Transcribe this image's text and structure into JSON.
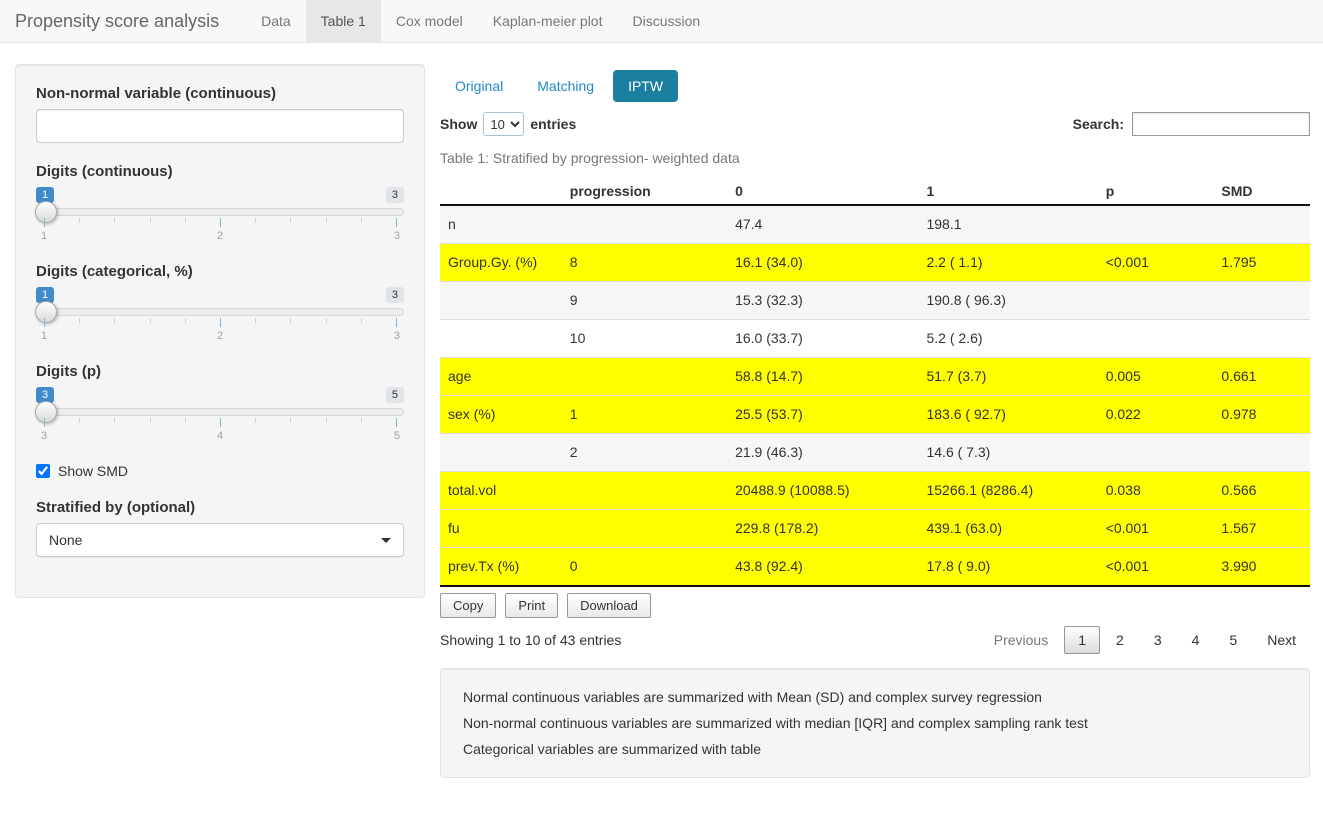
{
  "navbar": {
    "brand": "Propensity score analysis",
    "tabs": [
      {
        "label": "Data",
        "active": false
      },
      {
        "label": "Table 1",
        "active": true
      },
      {
        "label": "Cox model",
        "active": false
      },
      {
        "label": "Kaplan-meier plot",
        "active": false
      },
      {
        "label": "Discussion",
        "active": false
      }
    ]
  },
  "sidebar": {
    "nonnormal_label": "Non-normal variable (continuous)",
    "nonnormal_value": "",
    "sliders": [
      {
        "label": "Digits (continuous)",
        "value": "1",
        "max": "3",
        "ticks": [
          "1",
          "2",
          "3"
        ]
      },
      {
        "label": "Digits (categorical, %)",
        "value": "1",
        "max": "3",
        "ticks": [
          "1",
          "2",
          "3"
        ]
      },
      {
        "label": "Digits (p)",
        "value": "3",
        "max": "5",
        "ticks": [
          "3",
          "4",
          "5"
        ]
      }
    ],
    "checkbox": {
      "label": "Show SMD",
      "checked": true
    },
    "stratify": {
      "label": "Stratified by (optional)",
      "value": "None"
    }
  },
  "main": {
    "pills": [
      {
        "label": "Original",
        "active": false
      },
      {
        "label": "Matching",
        "active": false
      },
      {
        "label": "IPTW",
        "active": true
      }
    ],
    "show_label": "Show",
    "page_length": "10",
    "entries_label": "entries",
    "search_label": "Search:",
    "search_value": "",
    "caption": "Table 1: Stratified by progression- weighted data",
    "table": {
      "headers": [
        "",
        "progression",
        "0",
        "1",
        "p",
        "SMD"
      ],
      "rows": [
        {
          "cells": [
            "n",
            "",
            "47.4",
            "198.1",
            "",
            ""
          ],
          "style": "stripe"
        },
        {
          "cells": [
            "Group.Gy. (%)",
            "8",
            "16.1 (34.0)",
            "2.2 ( 1.1)",
            "<0.001",
            "1.795"
          ],
          "style": "highlight"
        },
        {
          "cells": [
            "",
            "9",
            "15.3 (32.3)",
            "190.8 ( 96.3)",
            "",
            ""
          ],
          "style": "stripe"
        },
        {
          "cells": [
            "",
            "10",
            "16.0 (33.7)",
            "5.2 ( 2.6)",
            "",
            ""
          ],
          "style": "plain"
        },
        {
          "cells": [
            "age",
            "",
            "58.8 (14.7)",
            "51.7 (3.7)",
            "0.005",
            "0.661"
          ],
          "style": "highlight"
        },
        {
          "cells": [
            "sex (%)",
            "1",
            "25.5 (53.7)",
            "183.6 ( 92.7)",
            "0.022",
            "0.978"
          ],
          "style": "highlight"
        },
        {
          "cells": [
            "",
            "2",
            "21.9 (46.3)",
            "14.6 ( 7.3)",
            "",
            ""
          ],
          "style": "stripe"
        },
        {
          "cells": [
            "total.vol",
            "",
            "20488.9 (10088.5)",
            "15266.1 (8286.4)",
            "0.038",
            "0.566"
          ],
          "style": "highlight"
        },
        {
          "cells": [
            "fu",
            "",
            "229.8 (178.2)",
            "439.1 (63.0)",
            "<0.001",
            "1.567"
          ],
          "style": "highlight"
        },
        {
          "cells": [
            "prev.Tx (%)",
            "0",
            "43.8 (92.4)",
            "17.8 ( 9.0)",
            "<0.001",
            "3.990"
          ],
          "style": "highlight"
        }
      ]
    },
    "buttons": [
      "Copy",
      "Print",
      "Download"
    ],
    "info": "Showing 1 to 10 of 43 entries",
    "pagination": {
      "previous": "Previous",
      "pages": [
        "1",
        "2",
        "3",
        "4",
        "5"
      ],
      "current": "1",
      "next": "Next"
    },
    "notes": [
      "Normal continuous variables are summarized with Mean (SD) and complex survey regression",
      "Non-normal continuous variables are summarized with median [IQR] and complex sampling rank test",
      "Categorical variables are summarized with table"
    ]
  },
  "colors": {
    "accent_blue": "#428bca",
    "link_blue": "#2188c9",
    "active_pill_bg": "#1b80a0",
    "highlight_yellow": "#ffff00",
    "navbar_bg": "#f8f8f8",
    "navbar_active_bg": "#e7e7e7",
    "stripe_gray": "#f6f6f6"
  }
}
